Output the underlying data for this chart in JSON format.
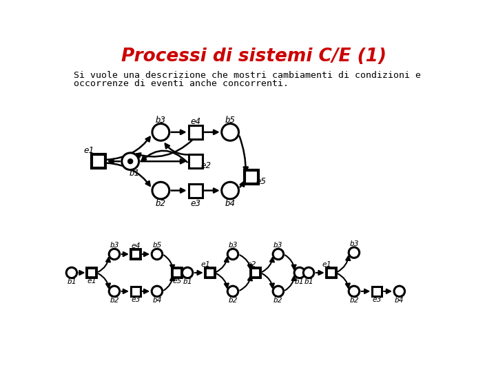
{
  "title": "Processi di sistemi C/E (1)",
  "title_color": "#cc0000",
  "subtitle_line1": "Si vuole una descrizione che mostri cambiamenti di condizioni e",
  "subtitle_line2": "occorrenze di eventi anche concorrenti.",
  "bg_color": "#ffffff"
}
